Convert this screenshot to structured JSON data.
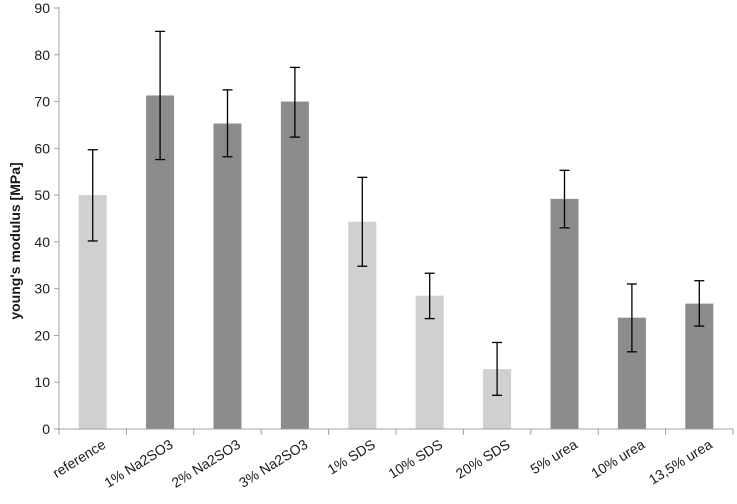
{
  "chart_data": {
    "type": "bar",
    "title": "",
    "xlabel": "",
    "ylabel": "young's modulus [MPa]",
    "ylim": [
      0,
      90
    ],
    "yticks": [
      0,
      10,
      20,
      30,
      40,
      50,
      60,
      70,
      80,
      90
    ],
    "grid": false,
    "legend": "none",
    "error_bars": true,
    "colors": {
      "light": "#d0d0d0",
      "dark": "#8c8c8c",
      "axis": "#a0a0a0",
      "error_bar": "#000000"
    },
    "categories": [
      "reference",
      "1% Na2SO3",
      "2% Na2SO3",
      "3% Na2SO3",
      "1% SDS",
      "10% SDS",
      "20% SDS",
      "5% urea",
      "10% urea",
      "13,5% urea"
    ],
    "values": [
      50,
      71.3,
      65.3,
      70,
      44.3,
      28.5,
      12.8,
      49.2,
      23.8,
      26.8
    ],
    "error_low": [
      40.2,
      57.6,
      58.2,
      62.4,
      34.8,
      23.6,
      7.2,
      43,
      16.5,
      22
    ],
    "error_high": [
      59.7,
      85,
      72.5,
      77.3,
      53.8,
      33.3,
      18.5,
      55.3,
      31,
      31.7
    ],
    "bar_shade": [
      "light",
      "dark",
      "dark",
      "dark",
      "light",
      "light",
      "light",
      "dark",
      "dark",
      "dark"
    ]
  }
}
